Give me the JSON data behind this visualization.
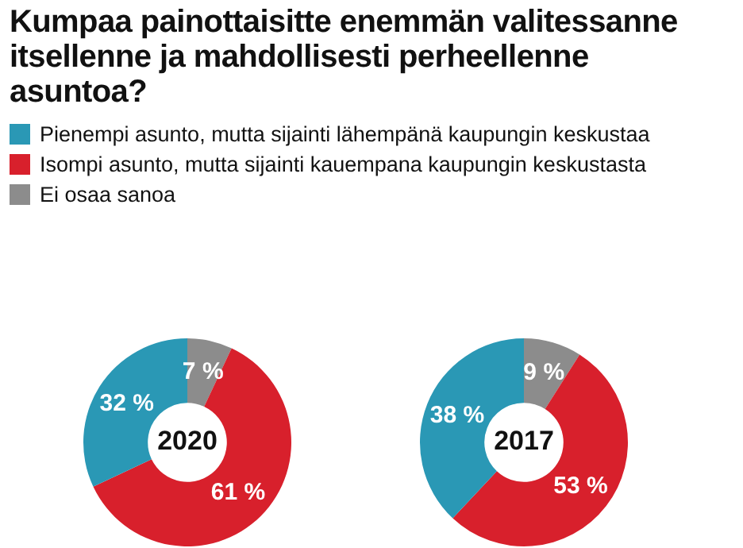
{
  "chart_data": [
    {
      "type": "donut",
      "title": "Kumpaa painottaisitte enemmän valitessanne itsellenne ja mahdollisesti perheellenne asuntoa?",
      "annotations": [
        "2020"
      ],
      "legend": "top",
      "categories": [
        "Pienempi asunto, mutta sijainti lähempänä kaupungin keskustaa",
        "Isompi asunto, mutta sijainti kauempana kaupungin keskustasta",
        "Ei osaa sanoa"
      ],
      "values": [
        32,
        61,
        7
      ],
      "value_labels": [
        "32 %",
        "61 %",
        "7 %"
      ],
      "colors": [
        "#2a98b5",
        "#d8202c",
        "#8c8c8c"
      ]
    },
    {
      "type": "donut",
      "annotations": [
        "2017"
      ],
      "categories": [
        null,
        null,
        null
      ],
      "values": [
        38,
        53,
        9
      ],
      "value_labels": [
        "38 %",
        "53 %",
        "9 %"
      ],
      "colors": [
        "#2a98b5",
        "#d8202c",
        "#8c8c8c"
      ]
    }
  ]
}
